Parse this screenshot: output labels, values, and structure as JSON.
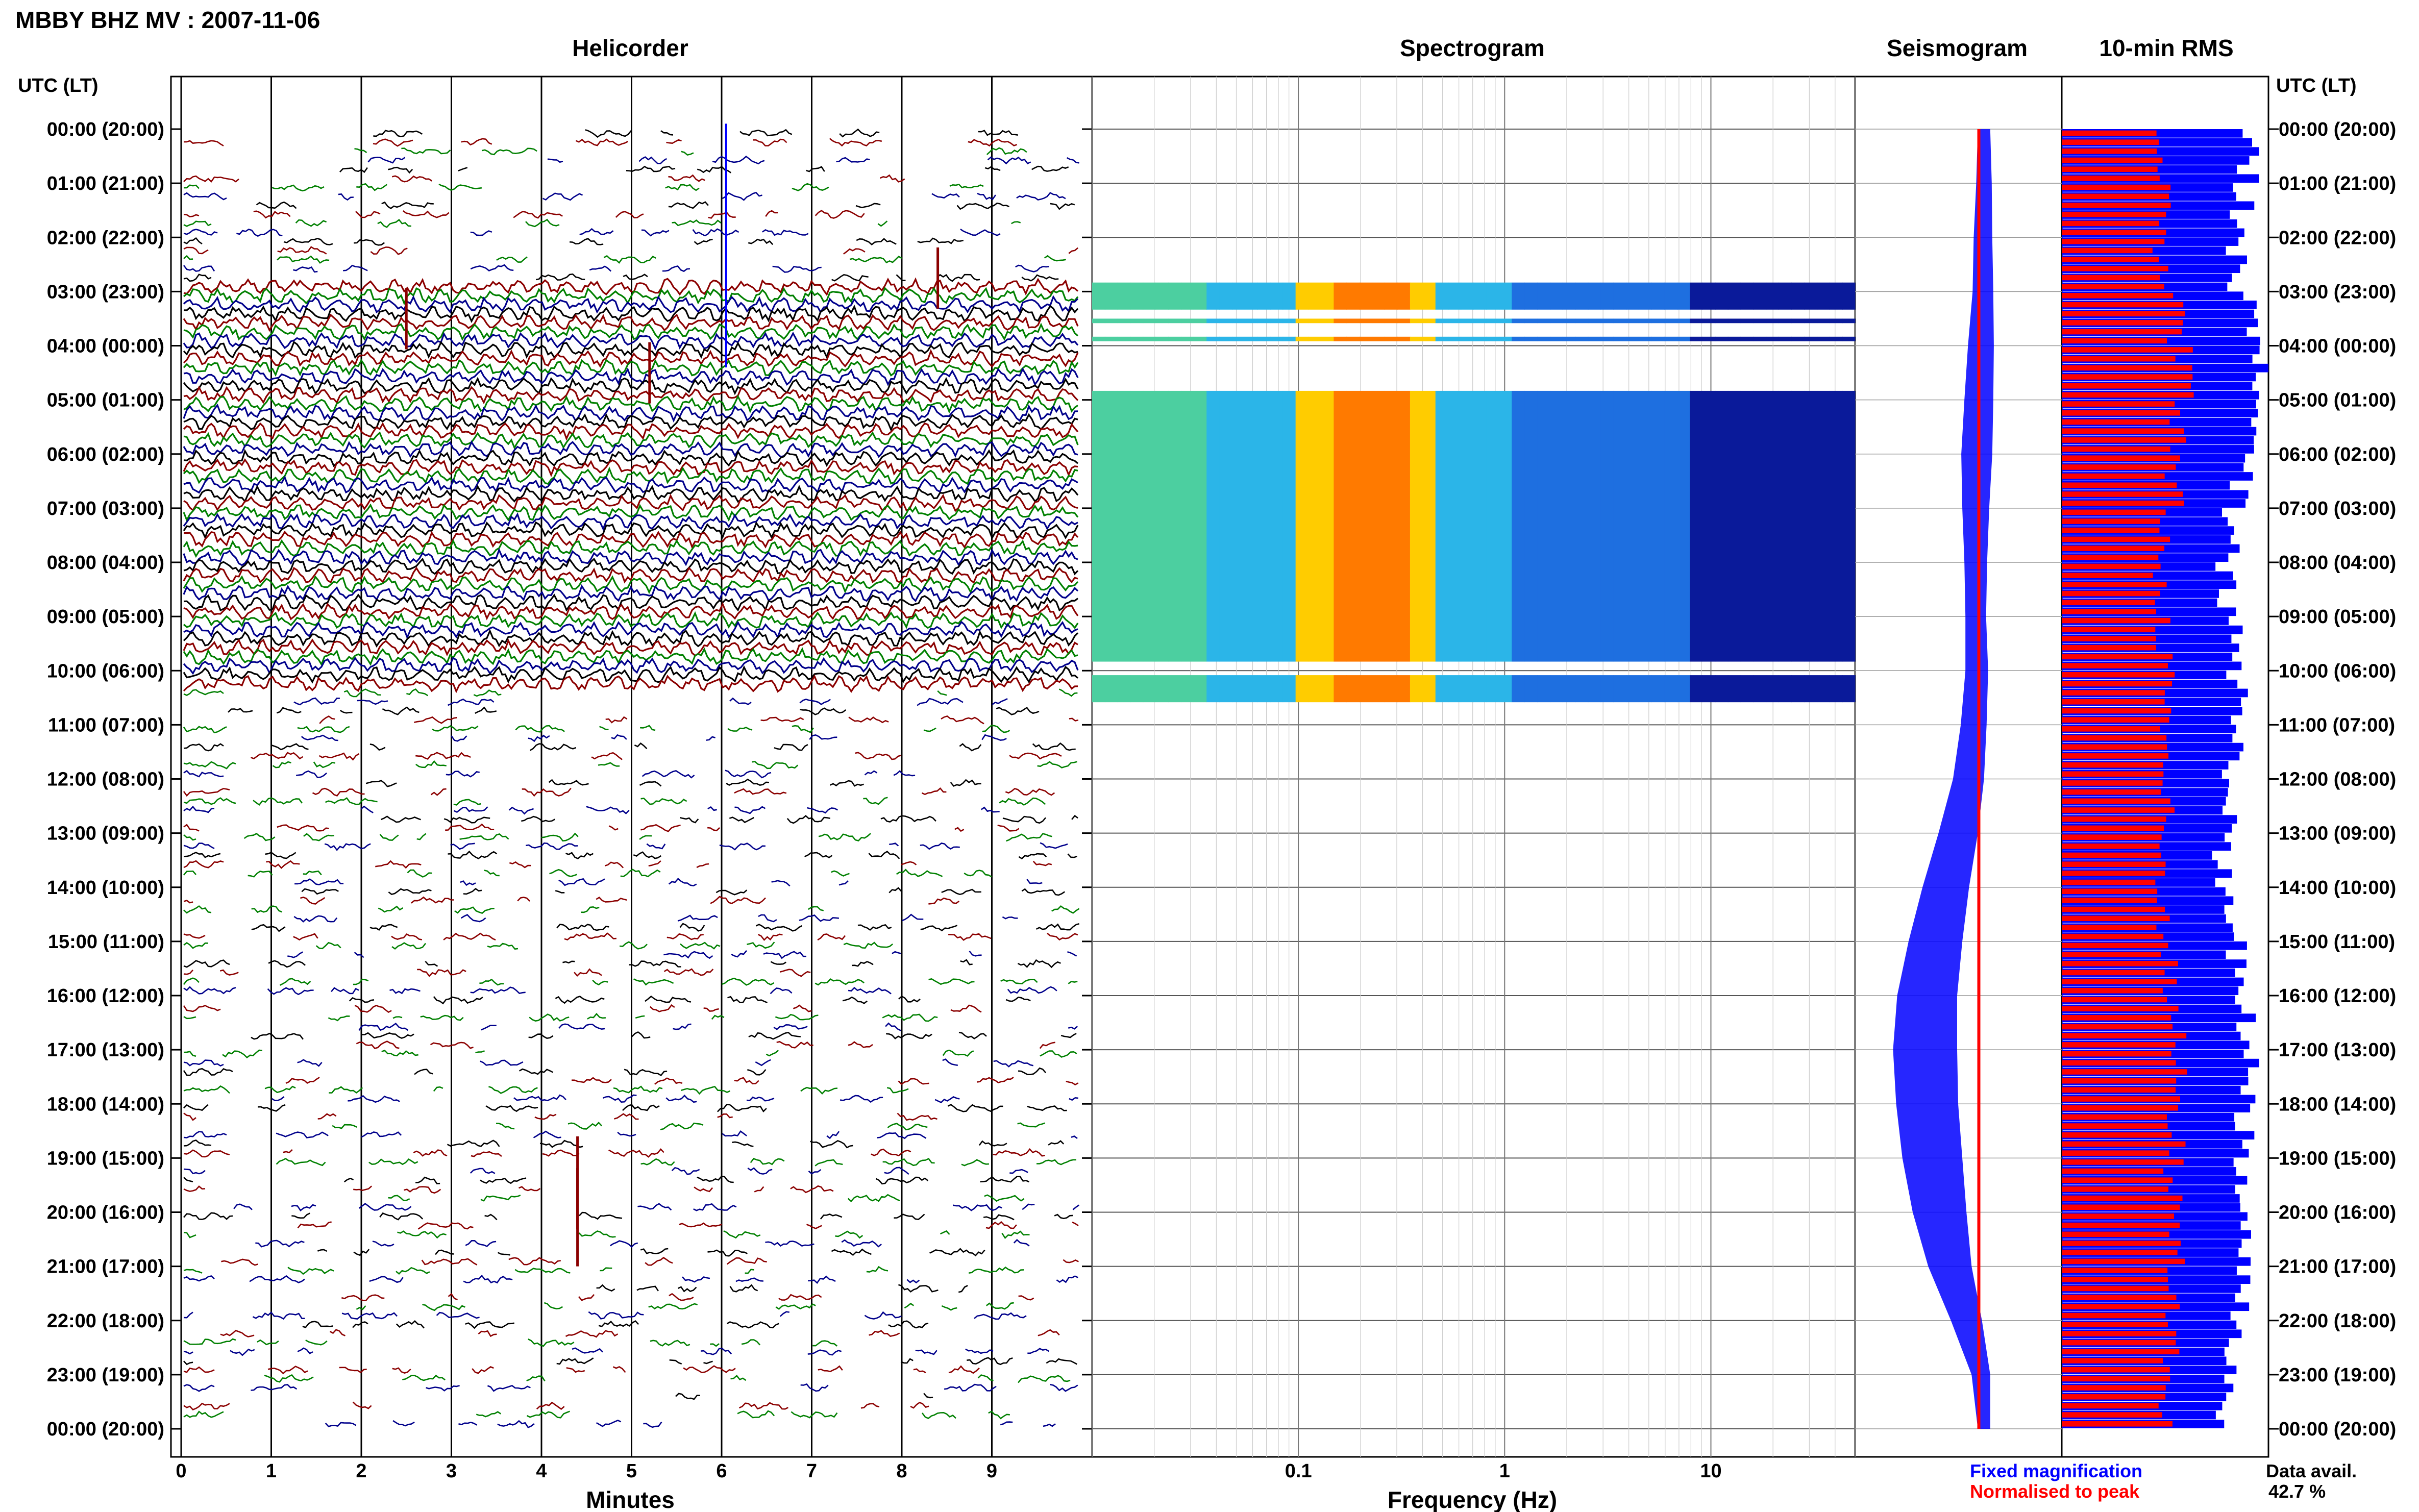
{
  "header": {
    "title": "MBBY BHZ MV : 2007-11-06",
    "utc_label": "UTC (LT)",
    "utc_label_right": "UTC (LT)"
  },
  "panels": {
    "helicorder": "Helicorder",
    "spectrogram": "Spectrogram",
    "seismogram": "Seismogram",
    "rms": "10-min RMS"
  },
  "axes": {
    "minutes_label": "Minutes",
    "minutes_ticks": [
      "0",
      "1",
      "2",
      "3",
      "4",
      "5",
      "6",
      "7",
      "8",
      "9"
    ],
    "frequency_label": "Frequency (Hz)",
    "frequency_ticks": [
      "0.1",
      "1",
      "10"
    ],
    "time_labels": [
      "00:00 (20:00)",
      "01:00 (21:00)",
      "02:00 (22:00)",
      "03:00 (23:00)",
      "04:00 (00:00)",
      "05:00 (01:00)",
      "06:00 (02:00)",
      "07:00 (03:00)",
      "08:00 (04:00)",
      "09:00 (05:00)",
      "10:00 (06:00)",
      "11:00 (07:00)",
      "12:00 (08:00)",
      "13:00 (09:00)",
      "14:00 (10:00)",
      "15:00 (11:00)",
      "16:00 (12:00)",
      "17:00 (13:00)",
      "18:00 (14:00)",
      "19:00 (15:00)",
      "20:00 (16:00)",
      "21:00 (17:00)",
      "22:00 (18:00)",
      "23:00 (19:00)",
      "00:00 (20:00)"
    ]
  },
  "legend": {
    "fixed": "Fixed magnification",
    "normalised": "Normalised to peak",
    "fixed_color": "#0000ff",
    "normalised_color": "#ff0000"
  },
  "data_availability": {
    "label": "Data avail.",
    "value": "42.7 %"
  },
  "colors": {
    "trace_cycle": [
      "#000000",
      "#8b0000",
      "#008000",
      "#00008b"
    ],
    "rms_fixed": "#0000ff",
    "rms_normalised": "#ff0000"
  },
  "chart_data": [
    {
      "type": "helicorder",
      "title": "Helicorder",
      "xlabel": "Minutes",
      "xlim": [
        0,
        10
      ],
      "row_minutes": 10,
      "dense_hours_utc": [
        2.7,
        10.3
      ],
      "events": [
        {
          "utc": "02:45",
          "minute": 8.4
        },
        {
          "utc": "03:30",
          "minute": 2.5
        },
        {
          "utc": "04:30",
          "minute": 5.2
        },
        {
          "utc": "19:45",
          "minute": 4.4
        }
      ]
    },
    {
      "type": "heatmap",
      "title": "Spectrogram",
      "xlabel": "Frequency (Hz)",
      "xscale": "log",
      "xlim": [
        0.01,
        50
      ],
      "bands": [
        {
          "from": "02:50",
          "to": "03:20"
        },
        {
          "from": "03:30",
          "to": "03:35"
        },
        {
          "from": "03:50",
          "to": "03:55"
        },
        {
          "from": "04:50",
          "to": "09:50"
        },
        {
          "from": "10:05",
          "to": "10:35"
        }
      ],
      "peak_frequency_hz": [
        0.15,
        0.3
      ]
    },
    {
      "type": "line",
      "title": "Seismogram",
      "series": [
        {
          "name": "Fixed magnification",
          "hours": [
            0,
            1,
            2,
            3,
            4,
            5,
            6,
            7,
            8,
            9,
            10,
            11,
            12,
            13,
            14,
            15,
            16,
            17,
            18,
            19,
            20,
            21,
            22,
            23,
            24
          ],
          "amplitude": [
            0.12,
            0.15,
            0.18,
            0.2,
            0.25,
            0.28,
            0.3,
            0.26,
            0.22,
            0.2,
            0.22,
            0.25,
            0.3,
            0.38,
            0.45,
            0.52,
            0.58,
            0.62,
            0.6,
            0.58,
            0.52,
            0.42,
            0.3,
            0.18,
            0.12
          ],
          "offset": [
            0.05,
            0.05,
            0.04,
            0.04,
            0.02,
            0.0,
            -0.02,
            -0.03,
            -0.03,
            -0.03,
            -0.02,
            -0.05,
            -0.1,
            -0.2,
            -0.32,
            -0.42,
            -0.5,
            -0.52,
            -0.5,
            -0.45,
            -0.38,
            -0.28,
            -0.12,
            0.02,
            0.05
          ]
        },
        {
          "name": "Normalised to peak",
          "hours": [
            0,
            24
          ],
          "offset": [
            0,
            0
          ]
        }
      ]
    },
    {
      "type": "bar",
      "title": "10-min RMS",
      "series": [
        {
          "name": "Fixed magnification",
          "hourly": [
            0.92,
            0.88,
            0.85,
            0.95,
            1.0,
            0.9,
            0.88,
            0.82,
            0.8,
            0.84,
            0.86,
            0.84,
            0.82,
            0.78,
            0.8,
            0.85,
            0.9,
            0.92,
            0.9,
            0.88,
            0.9,
            0.88,
            0.85,
            0.8
          ]
        },
        {
          "name": "Normalised to peak",
          "hourly": [
            0.5,
            0.52,
            0.48,
            0.55,
            0.6,
            0.55,
            0.54,
            0.5,
            0.48,
            0.5,
            0.52,
            0.5,
            0.5,
            0.48,
            0.5,
            0.52,
            0.55,
            0.56,
            0.55,
            0.54,
            0.56,
            0.55,
            0.52,
            0.5
          ]
        }
      ]
    }
  ]
}
